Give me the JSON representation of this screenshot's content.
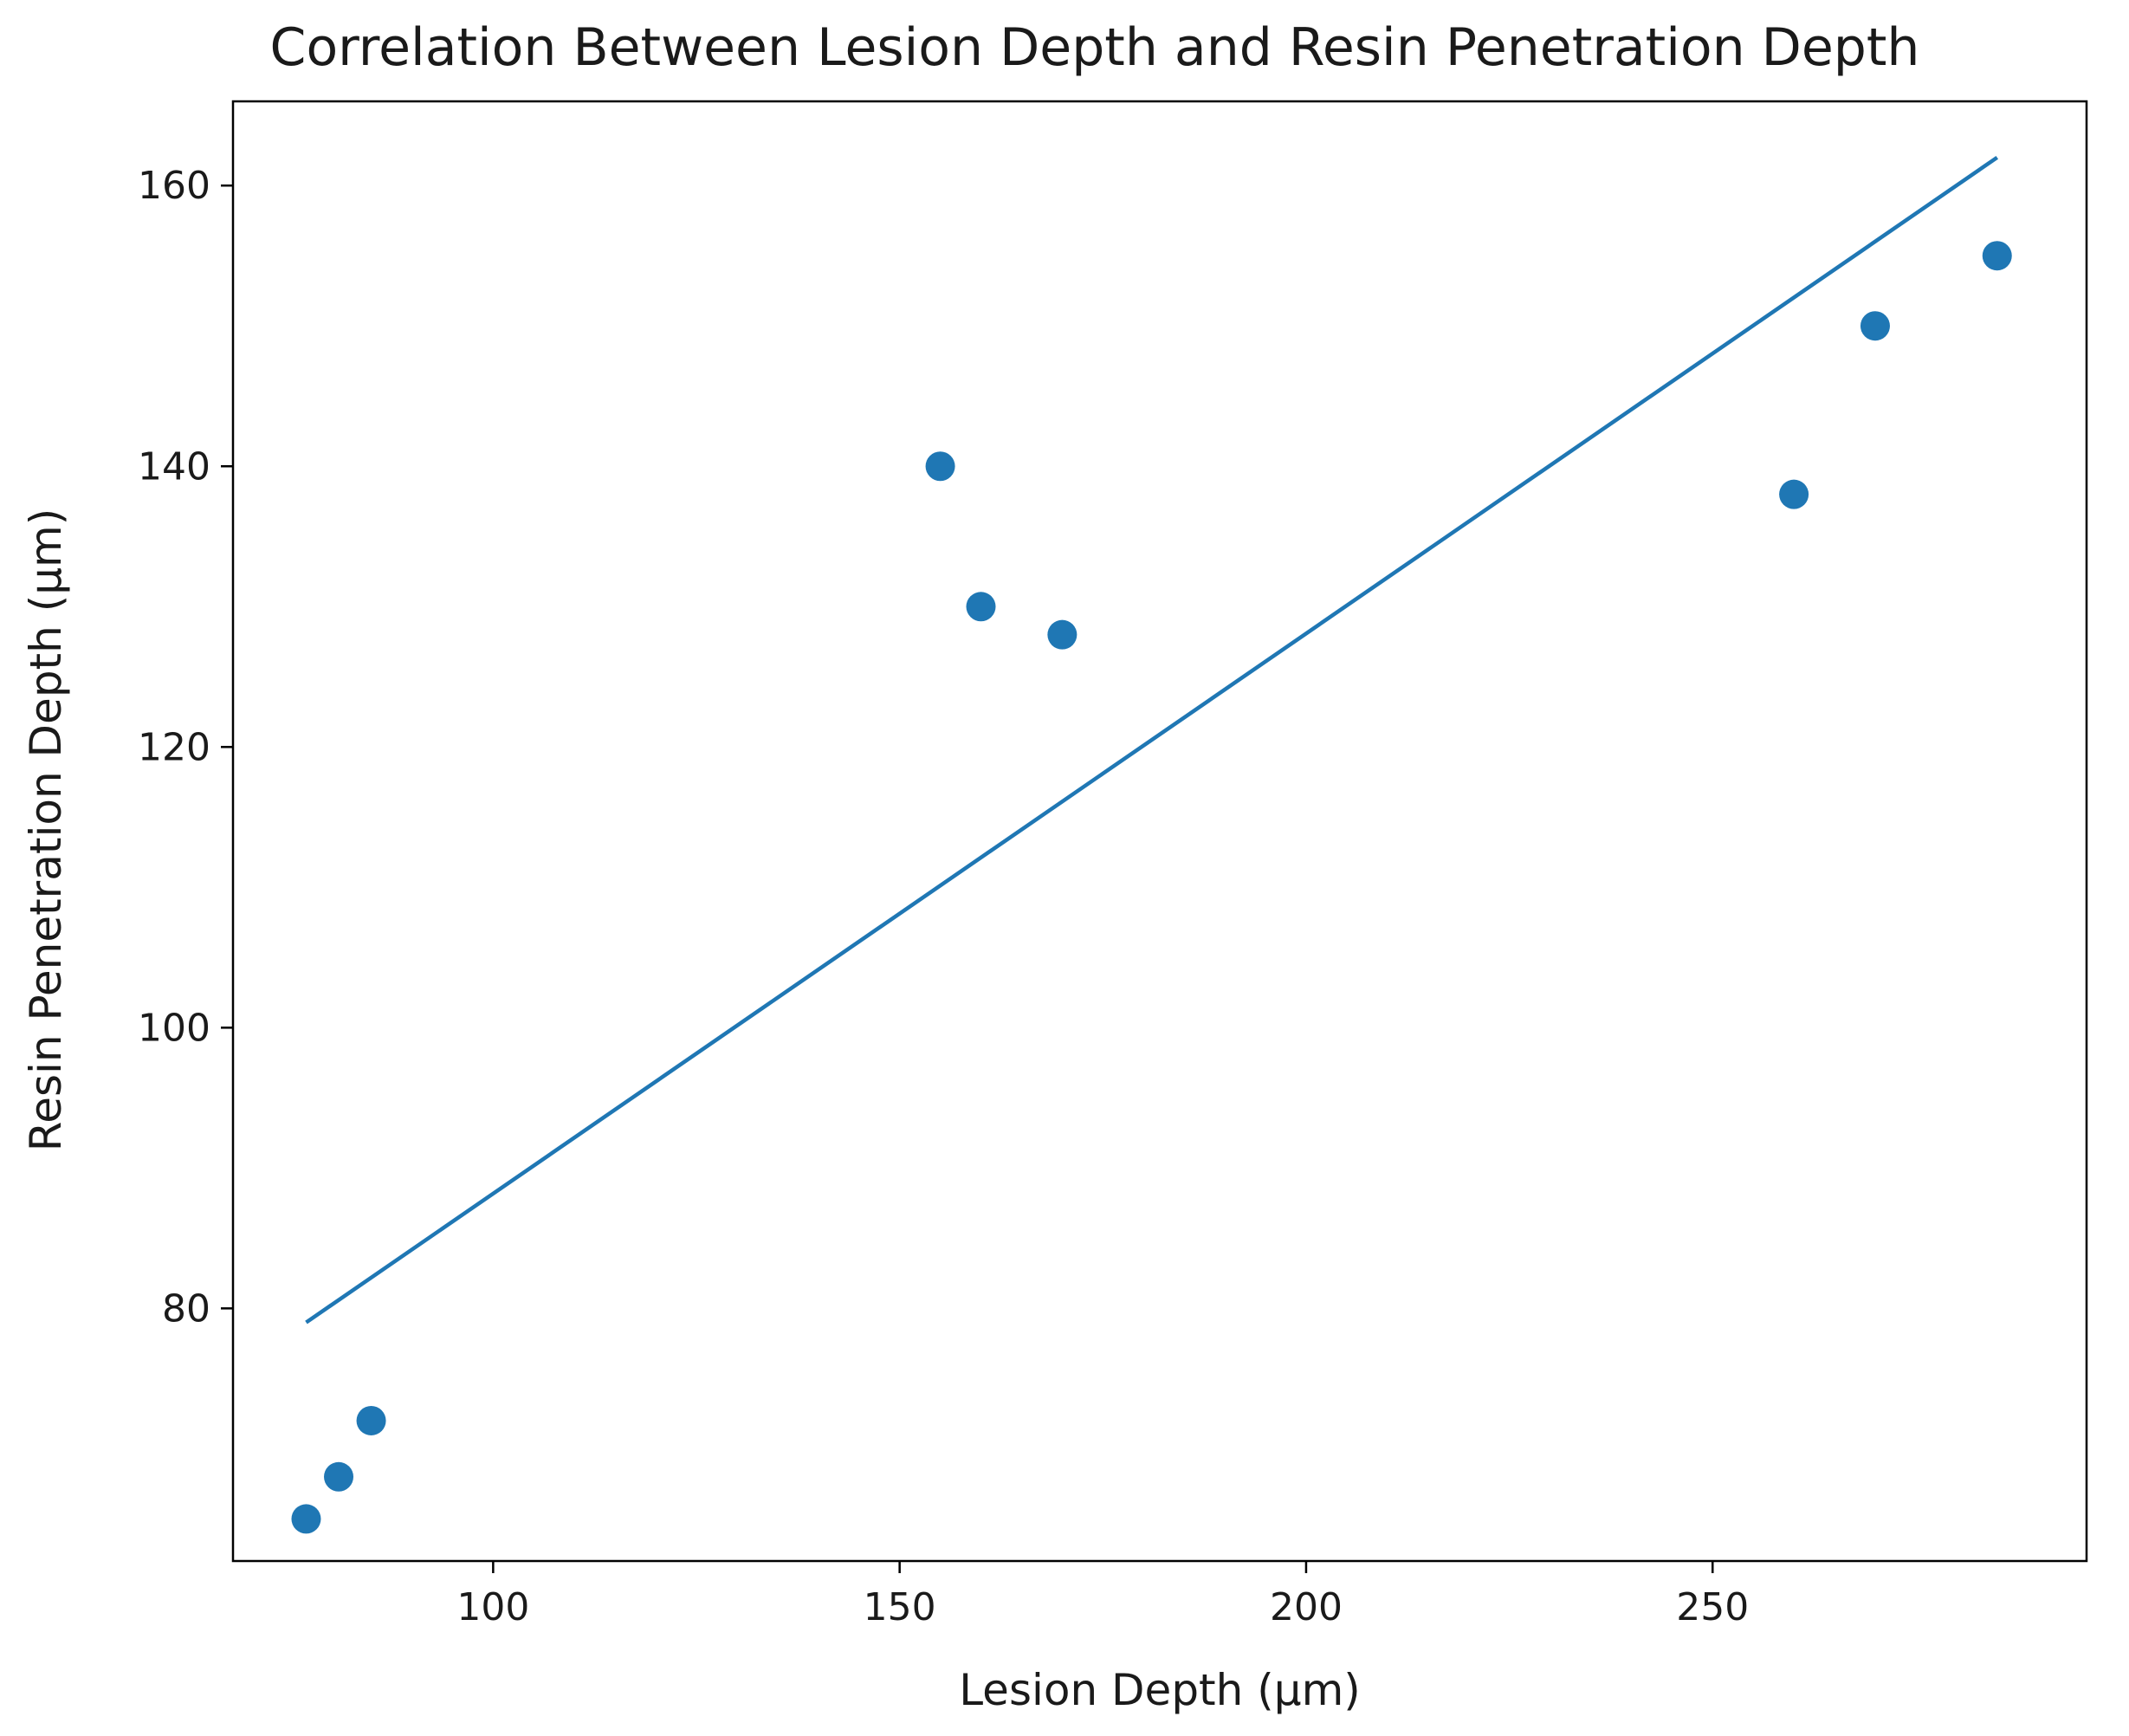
{
  "chart_data": {
    "type": "scatter",
    "title": "Correlation Between Lesion Depth and Resin Penetration Depth",
    "xlabel": "Lesion Depth (µm)",
    "ylabel": "Resin Penetration Depth (µm)",
    "xlim": [
      68,
      296
    ],
    "ylim": [
      62,
      166
    ],
    "xticks": [
      100,
      150,
      200,
      250
    ],
    "yticks": [
      80,
      100,
      120,
      140,
      160
    ],
    "grid": false,
    "legend": "none",
    "series": [
      {
        "kind": "points",
        "x": [
          77,
          81,
          85,
          155,
          160,
          170,
          260,
          270,
          285
        ],
        "y": [
          65,
          68,
          72,
          140,
          130,
          128,
          138,
          150,
          155
        ]
      },
      {
        "kind": "line",
        "x": [
          77,
          285
        ],
        "y": [
          79,
          162
        ]
      }
    ],
    "colors": {
      "points": "#1f77b4",
      "trend_line": "#1f77b4"
    }
  }
}
